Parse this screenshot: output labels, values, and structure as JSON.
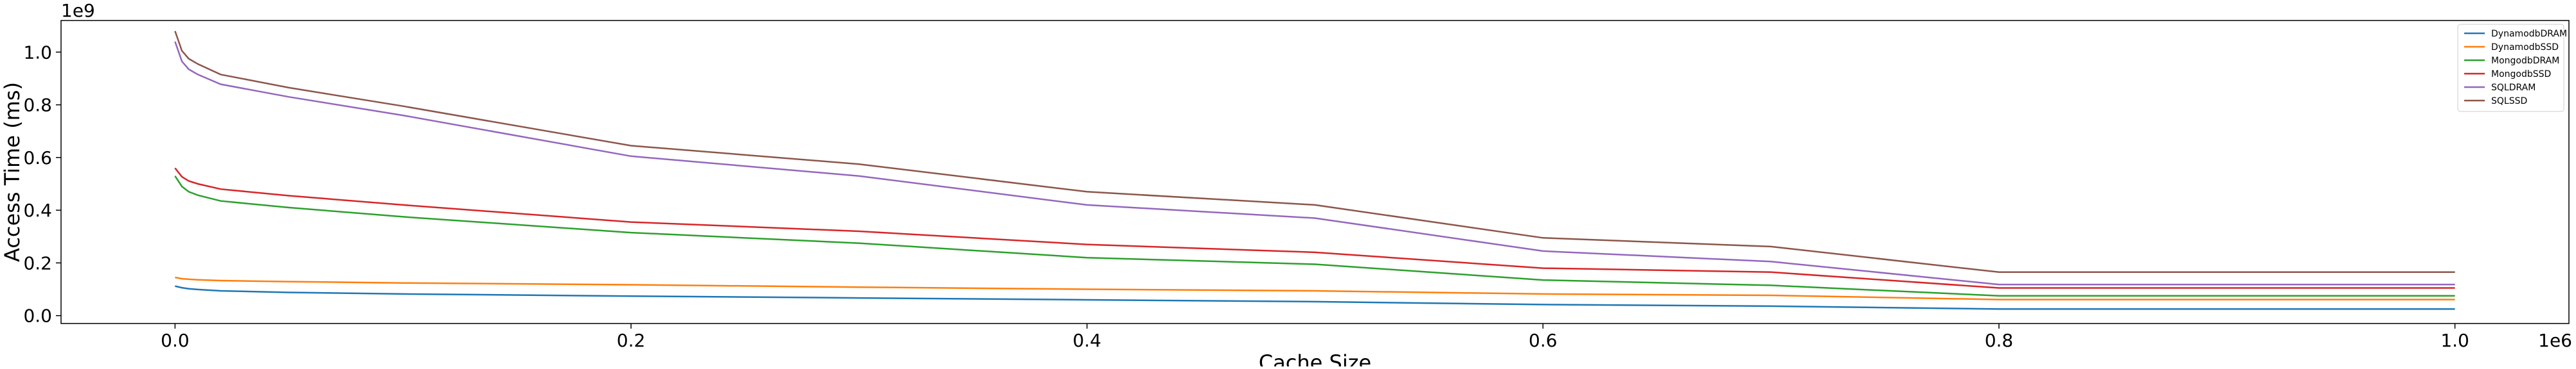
{
  "chart_data": {
    "type": "line",
    "title": "",
    "xlabel": "Cache Size",
    "ylabel": "Access Time (ms)",
    "x_offset_label": "1e6",
    "y_offset_label": "1e9",
    "xlim": [
      -0.05,
      1.05
    ],
    "ylim": [
      -0.03,
      1.12
    ],
    "x_ticks": [
      0.0,
      0.2,
      0.4,
      0.6,
      0.8,
      1.0
    ],
    "x_tick_labels": [
      "0.0",
      "0.2",
      "0.4",
      "0.6",
      "0.8",
      "1.0"
    ],
    "y_ticks": [
      0.0,
      0.2,
      0.4,
      0.6,
      0.8,
      1.0
    ],
    "y_tick_labels": [
      "0.0",
      "0.2",
      "0.4",
      "0.6",
      "0.8",
      "1.0"
    ],
    "grid": false,
    "legend_position": "top-right",
    "x": [
      0.0,
      0.003,
      0.006,
      0.01,
      0.02,
      0.05,
      0.1,
      0.2,
      0.3,
      0.4,
      0.5,
      0.6,
      0.7,
      0.8,
      0.9,
      1.0
    ],
    "series": [
      {
        "name": "DynamodbDRAM",
        "color": "#1f77b4",
        "values": [
          0.112,
          0.106,
          0.102,
          0.099,
          0.094,
          0.088,
          0.082,
          0.074,
          0.067,
          0.06,
          0.053,
          0.042,
          0.036,
          0.025,
          0.025,
          0.025
        ]
      },
      {
        "name": "DynamodbSSD",
        "color": "#ff7f0e",
        "values": [
          0.145,
          0.14,
          0.138,
          0.136,
          0.133,
          0.129,
          0.124,
          0.117,
          0.108,
          0.1,
          0.094,
          0.082,
          0.077,
          0.061,
          0.061,
          0.061
        ]
      },
      {
        "name": "MongodbDRAM",
        "color": "#2ca02c",
        "values": [
          0.53,
          0.49,
          0.47,
          0.457,
          0.435,
          0.41,
          0.375,
          0.315,
          0.275,
          0.22,
          0.195,
          0.135,
          0.115,
          0.075,
          0.075,
          0.075
        ]
      },
      {
        "name": "MongodbSSD",
        "color": "#d62728",
        "values": [
          0.56,
          0.527,
          0.511,
          0.5,
          0.48,
          0.455,
          0.42,
          0.355,
          0.32,
          0.27,
          0.24,
          0.18,
          0.165,
          0.105,
          0.105,
          0.105
        ]
      },
      {
        "name": "SQLDRAM",
        "color": "#9467bd",
        "values": [
          1.04,
          0.965,
          0.935,
          0.915,
          0.878,
          0.83,
          0.76,
          0.605,
          0.53,
          0.42,
          0.37,
          0.245,
          0.205,
          0.118,
          0.118,
          0.118
        ]
      },
      {
        "name": "SQLSSD",
        "color": "#8c564b",
        "values": [
          1.08,
          1.005,
          0.975,
          0.955,
          0.915,
          0.865,
          0.795,
          0.645,
          0.575,
          0.47,
          0.42,
          0.295,
          0.262,
          0.165,
          0.165,
          0.165
        ]
      }
    ]
  }
}
